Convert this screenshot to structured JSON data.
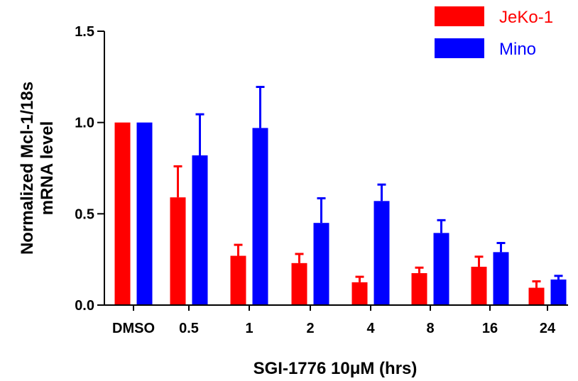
{
  "chart_data": {
    "type": "bar",
    "categories": [
      "DMSO",
      "0.5",
      "1",
      "2",
      "4",
      "8",
      "16",
      "24"
    ],
    "series": [
      {
        "name": "JeKo-1",
        "color": "#ff0000",
        "values": [
          1.0,
          0.59,
          0.27,
          0.23,
          0.125,
          0.175,
          0.21,
          0.095
        ],
        "error": [
          0.0,
          0.17,
          0.06,
          0.05,
          0.03,
          0.03,
          0.055,
          0.035
        ]
      },
      {
        "name": "Mino",
        "color": "#0000ff",
        "values": [
          1.0,
          0.82,
          0.97,
          0.45,
          0.57,
          0.395,
          0.29,
          0.14
        ],
        "error": [
          0.0,
          0.225,
          0.225,
          0.135,
          0.09,
          0.07,
          0.05,
          0.02
        ]
      }
    ],
    "xlabel": "SGI-1776 10μM (hrs)",
    "ylabel_lines": [
      "Normalized Mcl-1/18s",
      "mRNA level"
    ],
    "ylim": [
      0,
      1.5
    ],
    "yticks": [
      "0.0",
      "0.5",
      "1.0",
      "1.5"
    ],
    "ytick_values": [
      0,
      0.5,
      1.0,
      1.5
    ],
    "grid": false,
    "legend_position": "top-right"
  }
}
